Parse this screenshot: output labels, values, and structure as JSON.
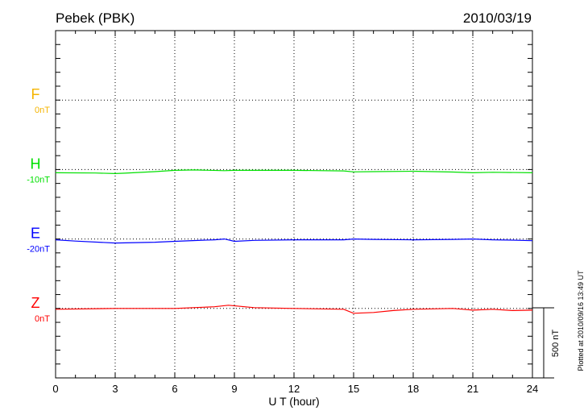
{
  "chart_data": {
    "type": "line",
    "title": "Pebek (PBK)",
    "date": "2010/03/19",
    "xlabel": "U T (hour)",
    "xlim": [
      0,
      24
    ],
    "xticks": [
      "0",
      "3",
      "6",
      "9",
      "12",
      "15",
      "18",
      "21",
      "24"
    ],
    "grid": true,
    "scale_bar": "500 nT",
    "footer": "Plotted at 2010/09/16 13:49 UT",
    "series": [
      {
        "name": "F",
        "baseline": "0nT",
        "color": "#f5b400",
        "x": [],
        "values": []
      },
      {
        "name": "H",
        "baseline": "-10nT",
        "color": "#00e000",
        "x": [
          0,
          2,
          3,
          3.5,
          5,
          6,
          7,
          8.5,
          9,
          12,
          14.5,
          15,
          16,
          18,
          20,
          21,
          22,
          24
        ],
        "values": [
          -23,
          -25,
          -29,
          -26,
          -15,
          -6,
          -3,
          -8,
          -6,
          -6,
          -10,
          -17,
          -15,
          -12,
          -18,
          -23,
          -20,
          -23
        ]
      },
      {
        "name": "E",
        "baseline": "-20nT",
        "color": "#0000ff",
        "x": [
          0,
          1,
          3,
          5,
          6,
          8,
          8.5,
          9,
          10,
          12,
          14.5,
          15,
          16,
          18,
          20,
          21,
          22,
          23,
          24
        ],
        "values": [
          -6,
          -15,
          -29,
          -23,
          -17,
          -6,
          0,
          -17,
          -10,
          -6,
          -6,
          0,
          -3,
          -6,
          -3,
          0,
          -6,
          -8,
          -12
        ]
      },
      {
        "name": "Z",
        "baseline": "0nT",
        "color": "#ff0000",
        "x": [
          0,
          3,
          6,
          8,
          8.7,
          10,
          12,
          14.5,
          15,
          16,
          17,
          18,
          20,
          20.5,
          21,
          22,
          23,
          24
        ],
        "values": [
          -6,
          0,
          0,
          12,
          23,
          6,
          0,
          -6,
          -35,
          -29,
          -15,
          -6,
          0,
          -6,
          -12,
          -6,
          -15,
          -12
        ]
      }
    ]
  }
}
